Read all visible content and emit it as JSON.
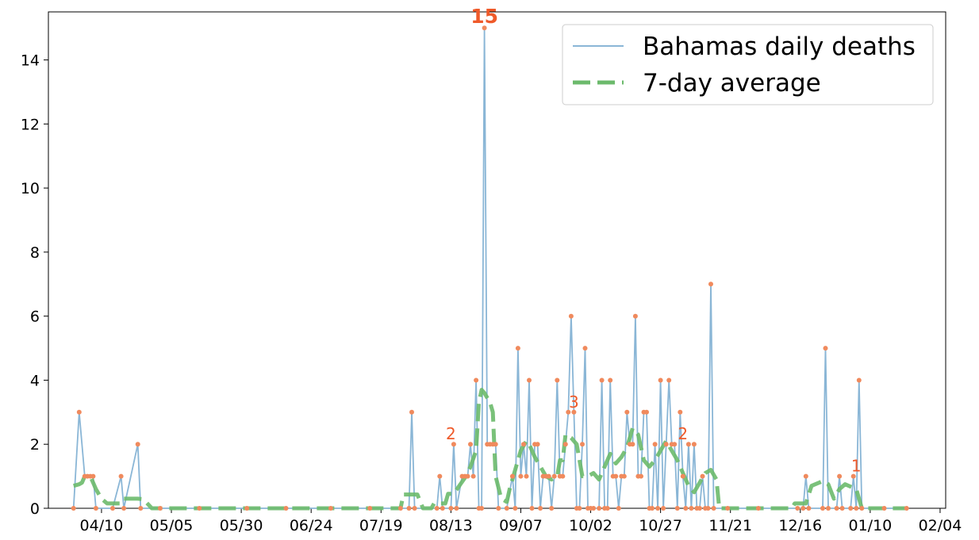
{
  "chart_data": {
    "type": "line",
    "title": "",
    "xlabel": "",
    "ylabel": "",
    "x_tick_labels": [
      "04/10",
      "05/05",
      "05/30",
      "06/24",
      "07/19",
      "08/13",
      "09/07",
      "10/02",
      "10/27",
      "11/21",
      "12/16",
      "01/10",
      "02/04"
    ],
    "y_ticks": [
      0,
      2,
      4,
      6,
      8,
      10,
      12,
      14
    ],
    "ylim": [
      0,
      15.5
    ],
    "xlim": [
      "2020-03-22",
      "2021-02-06"
    ],
    "legend": {
      "position": "top-right",
      "entries": [
        "Bahamas daily deaths",
        "7-day average"
      ]
    },
    "colors": {
      "daily_line": "#8ab6d6",
      "markers": "#f08a5d",
      "average": "#6cba6c",
      "annotation": "#ef5a2a"
    },
    "series": [
      {
        "name": "Bahamas daily deaths",
        "points": [
          [
            "2020-03-31",
            0
          ],
          [
            "2020-04-02",
            3
          ],
          [
            "2020-04-04",
            1
          ],
          [
            "2020-04-05",
            1
          ],
          [
            "2020-04-06",
            1
          ],
          [
            "2020-04-07",
            1
          ],
          [
            "2020-04-08",
            0
          ],
          [
            "2020-04-14",
            0
          ],
          [
            "2020-04-17",
            1
          ],
          [
            "2020-04-18",
            0
          ],
          [
            "2020-04-23",
            2
          ],
          [
            "2020-04-24",
            0
          ],
          [
            "2020-05-01",
            0
          ],
          [
            "2020-05-15",
            0
          ],
          [
            "2020-06-01",
            0
          ],
          [
            "2020-06-15",
            0
          ],
          [
            "2020-07-01",
            0
          ],
          [
            "2020-07-15",
            0
          ],
          [
            "2020-07-26",
            0
          ],
          [
            "2020-07-29",
            0
          ],
          [
            "2020-07-30",
            3
          ],
          [
            "2020-07-31",
            0
          ],
          [
            "2020-08-08",
            0
          ],
          [
            "2020-08-09",
            1
          ],
          [
            "2020-08-10",
            0
          ],
          [
            "2020-08-13",
            0
          ],
          [
            "2020-08-14",
            2
          ],
          [
            "2020-08-15",
            0
          ],
          [
            "2020-08-17",
            1
          ],
          [
            "2020-08-18",
            1
          ],
          [
            "2020-08-19",
            1
          ],
          [
            "2020-08-20",
            2
          ],
          [
            "2020-08-21",
            1
          ],
          [
            "2020-08-22",
            4
          ],
          [
            "2020-08-23",
            0
          ],
          [
            "2020-08-24",
            0
          ],
          [
            "2020-08-25",
            15
          ],
          [
            "2020-08-26",
            2
          ],
          [
            "2020-08-27",
            2
          ],
          [
            "2020-08-28",
            2
          ],
          [
            "2020-08-29",
            2
          ],
          [
            "2020-08-30",
            0
          ],
          [
            "2020-09-02",
            0
          ],
          [
            "2020-09-04",
            1
          ],
          [
            "2020-09-05",
            0
          ],
          [
            "2020-09-06",
            5
          ],
          [
            "2020-09-07",
            1
          ],
          [
            "2020-09-08",
            2
          ],
          [
            "2020-09-09",
            1
          ],
          [
            "2020-09-10",
            4
          ],
          [
            "2020-09-11",
            0
          ],
          [
            "2020-09-12",
            2
          ],
          [
            "2020-09-13",
            2
          ],
          [
            "2020-09-14",
            0
          ],
          [
            "2020-09-15",
            1
          ],
          [
            "2020-09-16",
            1
          ],
          [
            "2020-09-17",
            1
          ],
          [
            "2020-09-18",
            0
          ],
          [
            "2020-09-19",
            1
          ],
          [
            "2020-09-20",
            4
          ],
          [
            "2020-09-21",
            1
          ],
          [
            "2020-09-22",
            1
          ],
          [
            "2020-09-23",
            2
          ],
          [
            "2020-09-24",
            3
          ],
          [
            "2020-09-25",
            6
          ],
          [
            "2020-09-26",
            3
          ],
          [
            "2020-09-27",
            0
          ],
          [
            "2020-09-28",
            0
          ],
          [
            "2020-09-29",
            2
          ],
          [
            "2020-09-30",
            5
          ],
          [
            "2020-10-01",
            0
          ],
          [
            "2020-10-02",
            0
          ],
          [
            "2020-10-03",
            0
          ],
          [
            "2020-10-05",
            0
          ],
          [
            "2020-10-06",
            4
          ],
          [
            "2020-10-07",
            0
          ],
          [
            "2020-10-08",
            0
          ],
          [
            "2020-10-09",
            4
          ],
          [
            "2020-10-10",
            1
          ],
          [
            "2020-10-11",
            1
          ],
          [
            "2020-10-12",
            0
          ],
          [
            "2020-10-13",
            1
          ],
          [
            "2020-10-14",
            1
          ],
          [
            "2020-10-15",
            3
          ],
          [
            "2020-10-16",
            2
          ],
          [
            "2020-10-17",
            2
          ],
          [
            "2020-10-18",
            6
          ],
          [
            "2020-10-19",
            1
          ],
          [
            "2020-10-20",
            1
          ],
          [
            "2020-10-21",
            3
          ],
          [
            "2020-10-22",
            3
          ],
          [
            "2020-10-23",
            0
          ],
          [
            "2020-10-24",
            0
          ],
          [
            "2020-10-25",
            2
          ],
          [
            "2020-10-26",
            0
          ],
          [
            "2020-10-27",
            4
          ],
          [
            "2020-10-28",
            0
          ],
          [
            "2020-10-29",
            2
          ],
          [
            "2020-10-30",
            4
          ],
          [
            "2020-10-31",
            2
          ],
          [
            "2020-11-01",
            2
          ],
          [
            "2020-11-02",
            0
          ],
          [
            "2020-11-03",
            3
          ],
          [
            "2020-11-04",
            1
          ],
          [
            "2020-11-05",
            0
          ],
          [
            "2020-11-06",
            2
          ],
          [
            "2020-11-07",
            0
          ],
          [
            "2020-11-08",
            2
          ],
          [
            "2020-11-09",
            0
          ],
          [
            "2020-11-10",
            0
          ],
          [
            "2020-11-11",
            1
          ],
          [
            "2020-11-12",
            0
          ],
          [
            "2020-11-13",
            0
          ],
          [
            "2020-11-14",
            7
          ],
          [
            "2020-11-15",
            0
          ],
          [
            "2020-11-20",
            0
          ],
          [
            "2020-12-01",
            0
          ],
          [
            "2020-12-15",
            0
          ],
          [
            "2020-12-17",
            0
          ],
          [
            "2020-12-18",
            1
          ],
          [
            "2020-12-19",
            0
          ],
          [
            "2020-12-24",
            0
          ],
          [
            "2020-12-25",
            5
          ],
          [
            "2020-12-26",
            0
          ],
          [
            "2020-12-29",
            0
          ],
          [
            "2020-12-30",
            1
          ],
          [
            "2020-12-31",
            0
          ],
          [
            "2021-01-03",
            0
          ],
          [
            "2021-01-04",
            1
          ],
          [
            "2021-01-05",
            0
          ],
          [
            "2021-01-06",
            4
          ],
          [
            "2021-01-07",
            0
          ],
          [
            "2021-01-15",
            0
          ],
          [
            "2021-01-23",
            0
          ]
        ]
      },
      {
        "name": "7-day average",
        "points": [
          [
            "2020-03-31",
            0.7
          ],
          [
            "2020-04-02",
            0.75
          ],
          [
            "2020-04-03",
            0.8
          ],
          [
            "2020-04-04",
            1.0
          ],
          [
            "2020-04-06",
            1.0
          ],
          [
            "2020-04-08",
            0.6
          ],
          [
            "2020-04-10",
            0.3
          ],
          [
            "2020-04-12",
            0.15
          ],
          [
            "2020-04-17",
            0.15
          ],
          [
            "2020-04-18",
            0.3
          ],
          [
            "2020-04-20",
            0.3
          ],
          [
            "2020-04-23",
            0.3
          ],
          [
            "2020-04-25",
            0.28
          ],
          [
            "2020-04-28",
            0
          ],
          [
            "2020-07-26",
            0
          ],
          [
            "2020-07-27",
            0.43
          ],
          [
            "2020-08-01",
            0.43
          ],
          [
            "2020-08-03",
            0
          ],
          [
            "2020-08-06",
            0
          ],
          [
            "2020-08-07",
            0.15
          ],
          [
            "2020-08-11",
            0.15
          ],
          [
            "2020-08-12",
            0.45
          ],
          [
            "2020-08-14",
            0.45
          ],
          [
            "2020-08-16",
            0.7
          ],
          [
            "2020-08-18",
            0.95
          ],
          [
            "2020-08-20",
            1.3
          ],
          [
            "2020-08-22",
            1.8
          ],
          [
            "2020-08-23",
            3.3
          ],
          [
            "2020-08-24",
            3.7
          ],
          [
            "2020-08-25",
            3.6
          ],
          [
            "2020-08-27",
            3.3
          ],
          [
            "2020-08-28",
            3.0
          ],
          [
            "2020-08-29",
            1.0
          ],
          [
            "2020-08-31",
            0.3
          ],
          [
            "2020-09-02",
            0.2
          ],
          [
            "2020-09-03",
            0.6
          ],
          [
            "2020-09-05",
            1.2
          ],
          [
            "2020-09-07",
            1.8
          ],
          [
            "2020-09-09",
            2.1
          ],
          [
            "2020-09-10",
            2.0
          ],
          [
            "2020-09-12",
            1.6
          ],
          [
            "2020-09-14",
            1.3
          ],
          [
            "2020-09-16",
            1.0
          ],
          [
            "2020-09-18",
            0.9
          ],
          [
            "2020-09-20",
            1.0
          ],
          [
            "2020-09-21",
            1.5
          ],
          [
            "2020-09-22",
            1.5
          ],
          [
            "2020-09-23",
            2.3
          ],
          [
            "2020-09-25",
            2.2
          ],
          [
            "2020-09-27",
            2.0
          ],
          [
            "2020-09-29",
            1.0
          ],
          [
            "2020-10-01",
            1.0
          ],
          [
            "2020-10-03",
            1.1
          ],
          [
            "2020-10-05",
            0.9
          ],
          [
            "2020-10-07",
            1.3
          ],
          [
            "2020-10-09",
            1.7
          ],
          [
            "2020-10-11",
            1.4
          ],
          [
            "2020-10-13",
            1.6
          ],
          [
            "2020-10-15",
            1.9
          ],
          [
            "2020-10-17",
            2.5
          ],
          [
            "2020-10-19",
            2.3
          ],
          [
            "2020-10-21",
            1.5
          ],
          [
            "2020-10-23",
            1.3
          ],
          [
            "2020-10-25",
            1.5
          ],
          [
            "2020-10-27",
            1.8
          ],
          [
            "2020-10-29",
            2.1
          ],
          [
            "2020-10-31",
            1.8
          ],
          [
            "2020-11-02",
            1.5
          ],
          [
            "2020-11-04",
            1.1
          ],
          [
            "2020-11-06",
            0.7
          ],
          [
            "2020-11-08",
            0.5
          ],
          [
            "2020-11-10",
            0.8
          ],
          [
            "2020-11-12",
            1.1
          ],
          [
            "2020-11-14",
            1.2
          ],
          [
            "2020-11-16",
            0.9
          ],
          [
            "2020-11-17",
            0
          ],
          [
            "2020-12-13",
            0
          ],
          [
            "2020-12-14",
            0.15
          ],
          [
            "2020-12-18",
            0.15
          ],
          [
            "2020-12-20",
            0.7
          ],
          [
            "2020-12-24",
            0.85
          ],
          [
            "2020-12-26",
            0.75
          ],
          [
            "2020-12-28",
            0.3
          ],
          [
            "2020-12-30",
            0.6
          ],
          [
            "2021-01-01",
            0.75
          ],
          [
            "2021-01-05",
            0.6
          ],
          [
            "2021-01-07",
            0
          ],
          [
            "2021-01-23",
            0
          ]
        ]
      }
    ],
    "annotations": [
      {
        "text": "15",
        "x": "2020-08-25",
        "y": 15,
        "big": true
      },
      {
        "text": "2",
        "x": "2020-08-13",
        "y": 2
      },
      {
        "text": "3",
        "x": "2020-09-26",
        "y": 3
      },
      {
        "text": "2",
        "x": "2020-11-04",
        "y": 2
      },
      {
        "text": "1",
        "x": "2021-01-05",
        "y": 1
      }
    ]
  }
}
